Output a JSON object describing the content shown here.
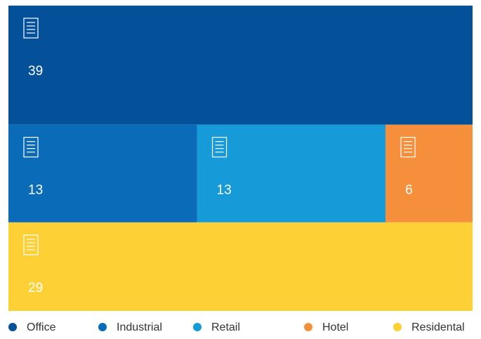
{
  "chart_data": {
    "type": "treemap",
    "categories": [
      "Office",
      "Industrial",
      "Retail",
      "Hotel",
      "Residental"
    ],
    "values": [
      39,
      13,
      13,
      6,
      29
    ],
    "colors": [
      "#04519a",
      "#0a6cb8",
      "#169ad8",
      "#f58f3b",
      "#fdd035"
    ]
  }
}
